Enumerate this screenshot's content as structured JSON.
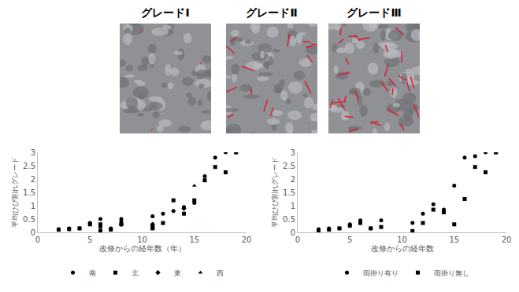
{
  "panels": [
    {
      "label": "グレードⅠ"
    },
    {
      "label": "グレードⅡ"
    },
    {
      "label": "グレードⅢ"
    }
  ],
  "chart_data": [
    {
      "type": "scatter",
      "xlabel": "改修からの経年数（年）",
      "ylabel": "平均ひび割れグレード",
      "xlim": [
        0,
        20
      ],
      "xticks": [
        0,
        5,
        10,
        15,
        20
      ],
      "ylim": [
        0,
        3
      ],
      "yticks": [
        0,
        0.5,
        1,
        1.5,
        2,
        2.5,
        3
      ],
      "grid": false,
      "legend": "bottom",
      "series": [
        {
          "name": "南",
          "marker": "circle",
          "color": "#000000",
          "x": [
            2,
            3,
            4,
            5,
            6,
            6,
            7,
            8,
            8,
            11,
            12,
            13,
            14,
            15,
            16,
            17,
            18,
            19
          ],
          "values": [
            0.12,
            0.15,
            0.15,
            0.35,
            0.5,
            0.2,
            0.15,
            0.5,
            0.4,
            0.6,
            0.7,
            0.8,
            0.95,
            1.1,
            2.1,
            2.8,
            3.0,
            3.0
          ]
        },
        {
          "name": "北",
          "marker": "square",
          "color": "#000000",
          "x": [
            2,
            3,
            4,
            5,
            6,
            6,
            7,
            8,
            11,
            11,
            12,
            13,
            14,
            15,
            16,
            17,
            18,
            19
          ],
          "values": [
            0.1,
            0.12,
            0.15,
            0.3,
            0.3,
            0.05,
            0.1,
            0.3,
            0.2,
            0.15,
            0.35,
            1.2,
            0.7,
            1.2,
            1.95,
            2.45,
            2.25,
            3.0
          ]
        },
        {
          "name": "東",
          "marker": "diamond",
          "color": "#000000",
          "x": [
            8,
            11,
            14
          ],
          "values": [
            0.3,
            0.3,
            0.9
          ]
        },
        {
          "name": "西",
          "marker": "triangle-up",
          "color": "#000000",
          "x": [
            11,
            15
          ],
          "values": [
            0.6,
            1.75
          ]
        }
      ]
    },
    {
      "type": "scatter",
      "xlabel": "改修からの経年数",
      "ylabel": "平均ひび割れグレード",
      "xlim": [
        0,
        20
      ],
      "xticks": [
        0,
        5,
        10,
        15,
        20
      ],
      "ylim": [
        0,
        3
      ],
      "yticks": [
        0,
        0.5,
        1,
        1.5,
        2,
        2.5,
        3
      ],
      "grid": false,
      "legend": "bottom",
      "series": [
        {
          "name": "雨掛り有り",
          "marker": "circle",
          "color": "#000000",
          "x": [
            2,
            3,
            4,
            5,
            6,
            7,
            8,
            11,
            12,
            13,
            14,
            15,
            16,
            17,
            18,
            19
          ],
          "values": [
            0.12,
            0.15,
            0.15,
            0.3,
            0.45,
            0.15,
            0.45,
            0.35,
            0.7,
            1.05,
            0.85,
            1.75,
            2.8,
            2.85,
            3.0,
            3.0
          ]
        },
        {
          "name": "雨掛り無し",
          "marker": "square",
          "color": "#000000",
          "x": [
            2,
            3,
            4,
            5,
            6,
            7,
            8,
            11,
            12,
            13,
            14,
            15,
            16,
            17,
            18,
            19
          ],
          "values": [
            0.05,
            0.1,
            0.15,
            0.25,
            0.35,
            0.15,
            0.2,
            0.05,
            0.35,
            0.85,
            0.75,
            0.3,
            1.25,
            2.45,
            2.25,
            3.0
          ]
        }
      ]
    }
  ]
}
